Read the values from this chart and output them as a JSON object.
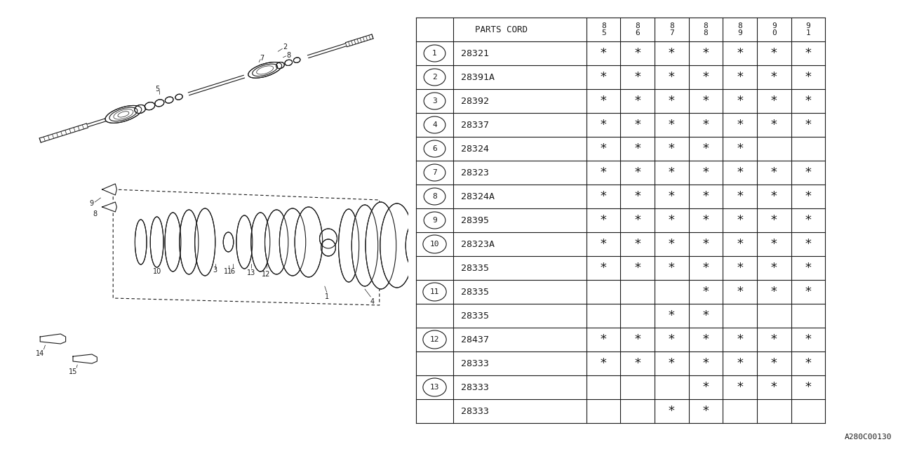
{
  "bg_color": "#ffffff",
  "code_ref": "A280C00130",
  "header_cols": [
    "8\n5",
    "8\n6",
    "8\n7",
    "8\n8",
    "8\n9",
    "9\n0",
    "9\n1"
  ],
  "rows": [
    {
      "num": "1",
      "code": "28321",
      "marks": [
        1,
        1,
        1,
        1,
        1,
        1,
        1
      ]
    },
    {
      "num": "2",
      "code": "28391A",
      "marks": [
        1,
        1,
        1,
        1,
        1,
        1,
        1
      ]
    },
    {
      "num": "3",
      "code": "28392",
      "marks": [
        1,
        1,
        1,
        1,
        1,
        1,
        1
      ]
    },
    {
      "num": "4",
      "code": "28337",
      "marks": [
        1,
        1,
        1,
        1,
        1,
        1,
        1
      ]
    },
    {
      "num": "6",
      "code": "28324",
      "marks": [
        1,
        1,
        1,
        1,
        1,
        0,
        0
      ]
    },
    {
      "num": "7",
      "code": "28323",
      "marks": [
        1,
        1,
        1,
        1,
        1,
        1,
        1
      ]
    },
    {
      "num": "8",
      "code": "28324A",
      "marks": [
        1,
        1,
        1,
        1,
        1,
        1,
        1
      ]
    },
    {
      "num": "9",
      "code": "28395",
      "marks": [
        1,
        1,
        1,
        1,
        1,
        1,
        1
      ]
    },
    {
      "num": "10",
      "code": "28323A",
      "marks": [
        1,
        1,
        1,
        1,
        1,
        1,
        1
      ]
    },
    {
      "num": "",
      "code": "28335",
      "marks": [
        1,
        1,
        1,
        1,
        1,
        1,
        1
      ]
    },
    {
      "num": "11",
      "code": "28335",
      "marks": [
        0,
        0,
        0,
        1,
        1,
        1,
        1
      ]
    },
    {
      "num": "",
      "code": "28335",
      "marks": [
        0,
        0,
        1,
        1,
        0,
        0,
        0
      ]
    },
    {
      "num": "12",
      "code": "28437",
      "marks": [
        1,
        1,
        1,
        1,
        1,
        1,
        1
      ]
    },
    {
      "num": "",
      "code": "28333",
      "marks": [
        1,
        1,
        1,
        1,
        1,
        1,
        1
      ]
    },
    {
      "num": "13",
      "code": "28333",
      "marks": [
        0,
        0,
        0,
        1,
        1,
        1,
        1
      ]
    },
    {
      "num": "",
      "code": "28333",
      "marks": [
        0,
        0,
        1,
        1,
        0,
        0,
        0
      ]
    }
  ],
  "circled_nums": [
    "1",
    "2",
    "3",
    "4",
    "6",
    "7",
    "8",
    "9",
    "10",
    "11",
    "12",
    "13"
  ],
  "lw": 0.8,
  "table_font": 9,
  "mark_font": 10
}
